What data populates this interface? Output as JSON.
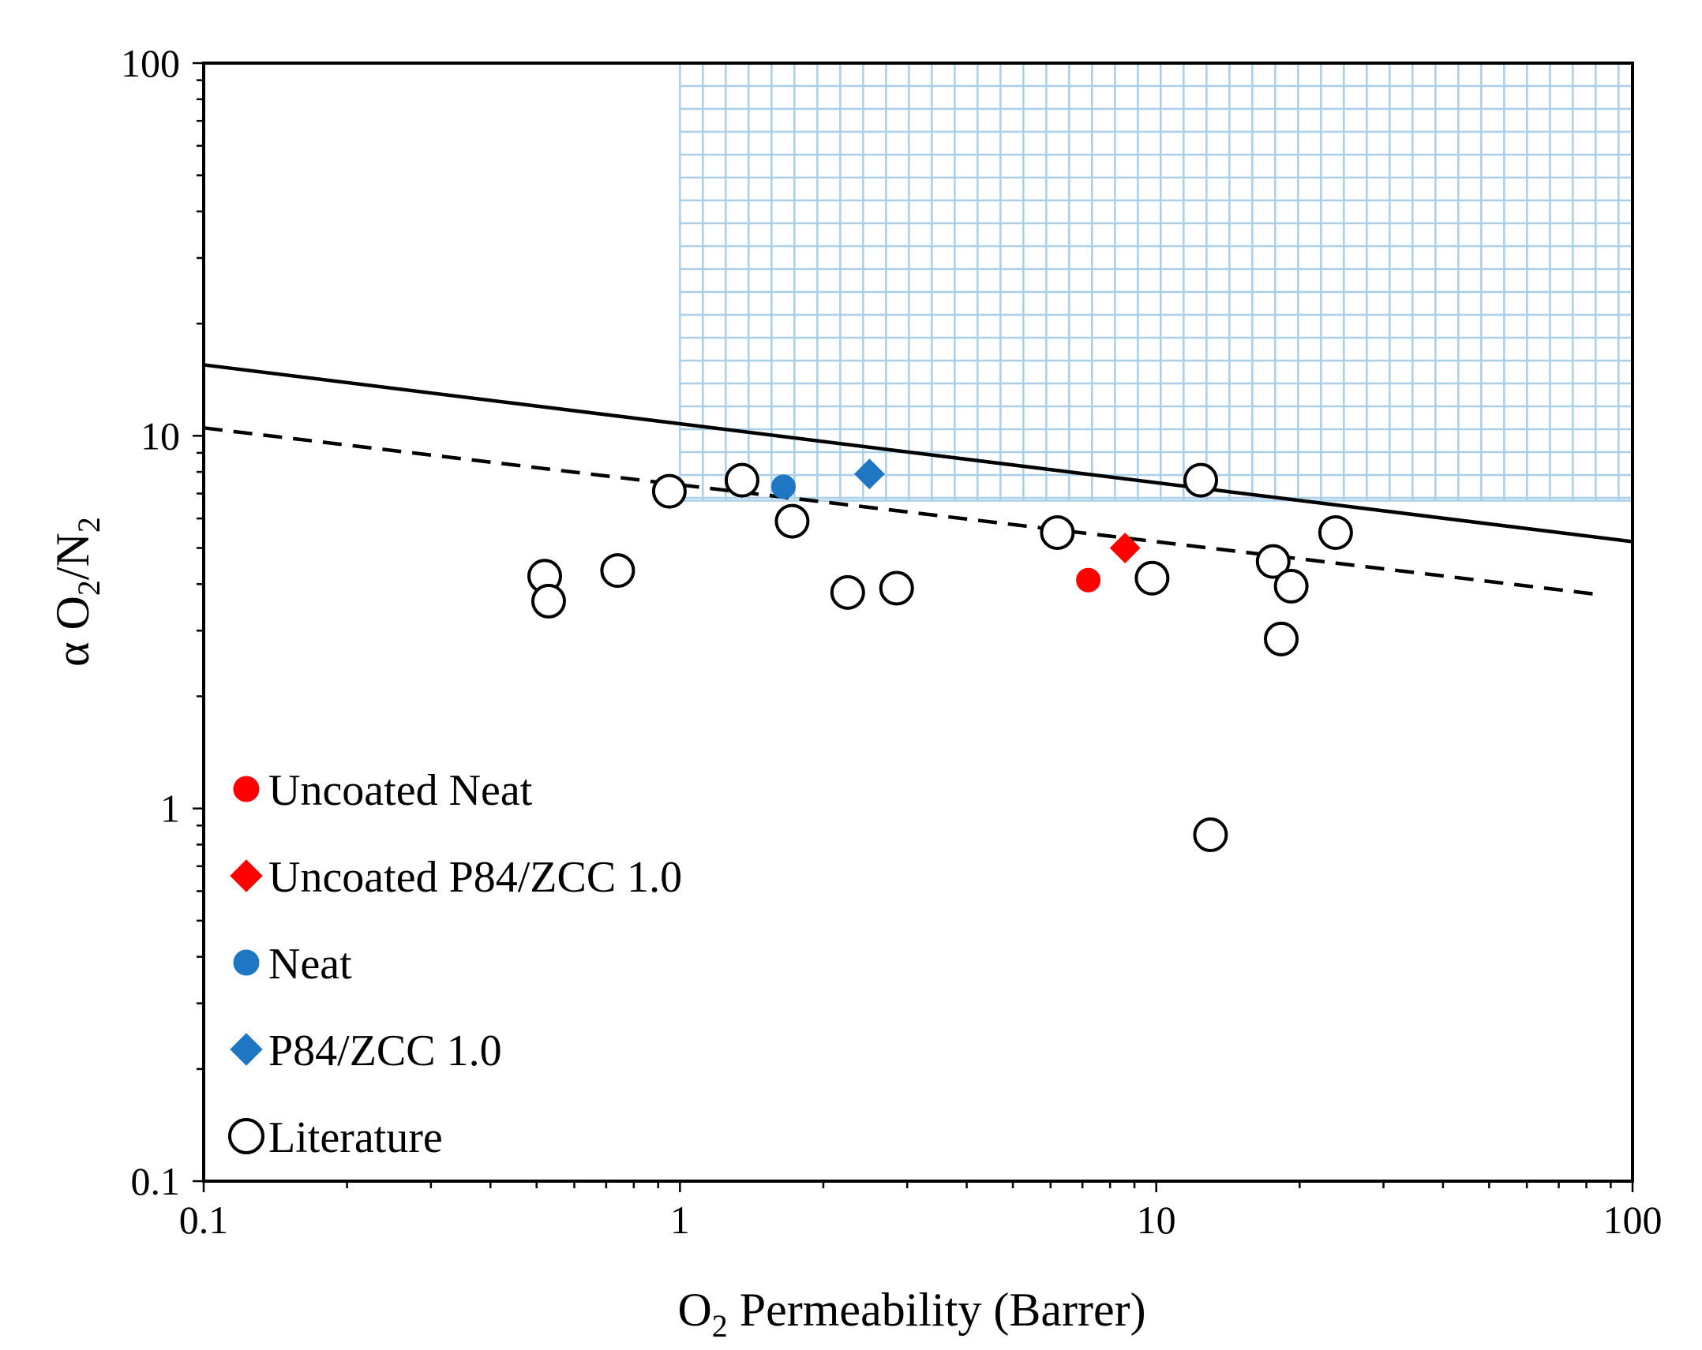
{
  "chart_data": {
    "type": "scatter",
    "title": "",
    "x_scale": "log",
    "y_scale": "log",
    "xlim": [
      0.1,
      100
    ],
    "ylim": [
      0.1,
      100
    ],
    "x_ticks": [
      "0.1",
      "1",
      "10",
      "100"
    ],
    "y_ticks": [
      "0.1",
      "1",
      "10",
      "100"
    ],
    "xlabel": {
      "prefix": "O",
      "sub": "2",
      "suffix": " Permeability (Barrer)"
    },
    "ylabel": {
      "alpha": "α O",
      "sub1": "2",
      "mid": "/N",
      "sub2": "2"
    },
    "grid": false,
    "target_region": {
      "x_from": 1,
      "x_to": 100,
      "y_from": 6.7,
      "y_to": 100,
      "pattern": "grid",
      "color": "#a9cfe9"
    },
    "upper_bounds": [
      {
        "style": "solid",
        "points": [
          [
            0.1,
            15.5
          ],
          [
            100,
            5.2
          ]
        ]
      },
      {
        "style": "dashed",
        "points": [
          [
            0.1,
            10.5
          ],
          [
            85,
            3.75
          ]
        ]
      }
    ],
    "legend_position": "bottom-left",
    "series": [
      {
        "name": "Uncoated Neat",
        "marker": "circle",
        "filled": true,
        "color": "#ff0000",
        "points": [
          [
            7.2,
            4.1
          ]
        ]
      },
      {
        "name": "Uncoated P84/ZCC 1.0",
        "marker": "diamond",
        "filled": true,
        "color": "#ff0000",
        "points": [
          [
            8.6,
            5.0
          ]
        ]
      },
      {
        "name": "Neat",
        "marker": "circle",
        "filled": true,
        "color": "#1f77c4",
        "points": [
          [
            1.65,
            7.3
          ]
        ]
      },
      {
        "name": "P84/ZCC 1.0",
        "marker": "diamond",
        "filled": true,
        "color": "#1f77c4",
        "points": [
          [
            2.5,
            7.9
          ]
        ]
      },
      {
        "name": "Literature",
        "marker": "circle",
        "filled": false,
        "color": "#000000",
        "points": [
          [
            0.52,
            4.2
          ],
          [
            0.53,
            3.6
          ],
          [
            0.74,
            4.35
          ],
          [
            0.95,
            7.1
          ],
          [
            1.35,
            7.6
          ],
          [
            1.72,
            5.9
          ],
          [
            2.25,
            3.8
          ],
          [
            2.85,
            3.9
          ],
          [
            6.2,
            5.5
          ],
          [
            9.8,
            4.15
          ],
          [
            12.4,
            7.6
          ],
          [
            13.0,
            0.85
          ],
          [
            17.6,
            4.6
          ],
          [
            18.3,
            2.85
          ],
          [
            19.2,
            3.95
          ],
          [
            23.8,
            5.5
          ]
        ]
      }
    ]
  }
}
